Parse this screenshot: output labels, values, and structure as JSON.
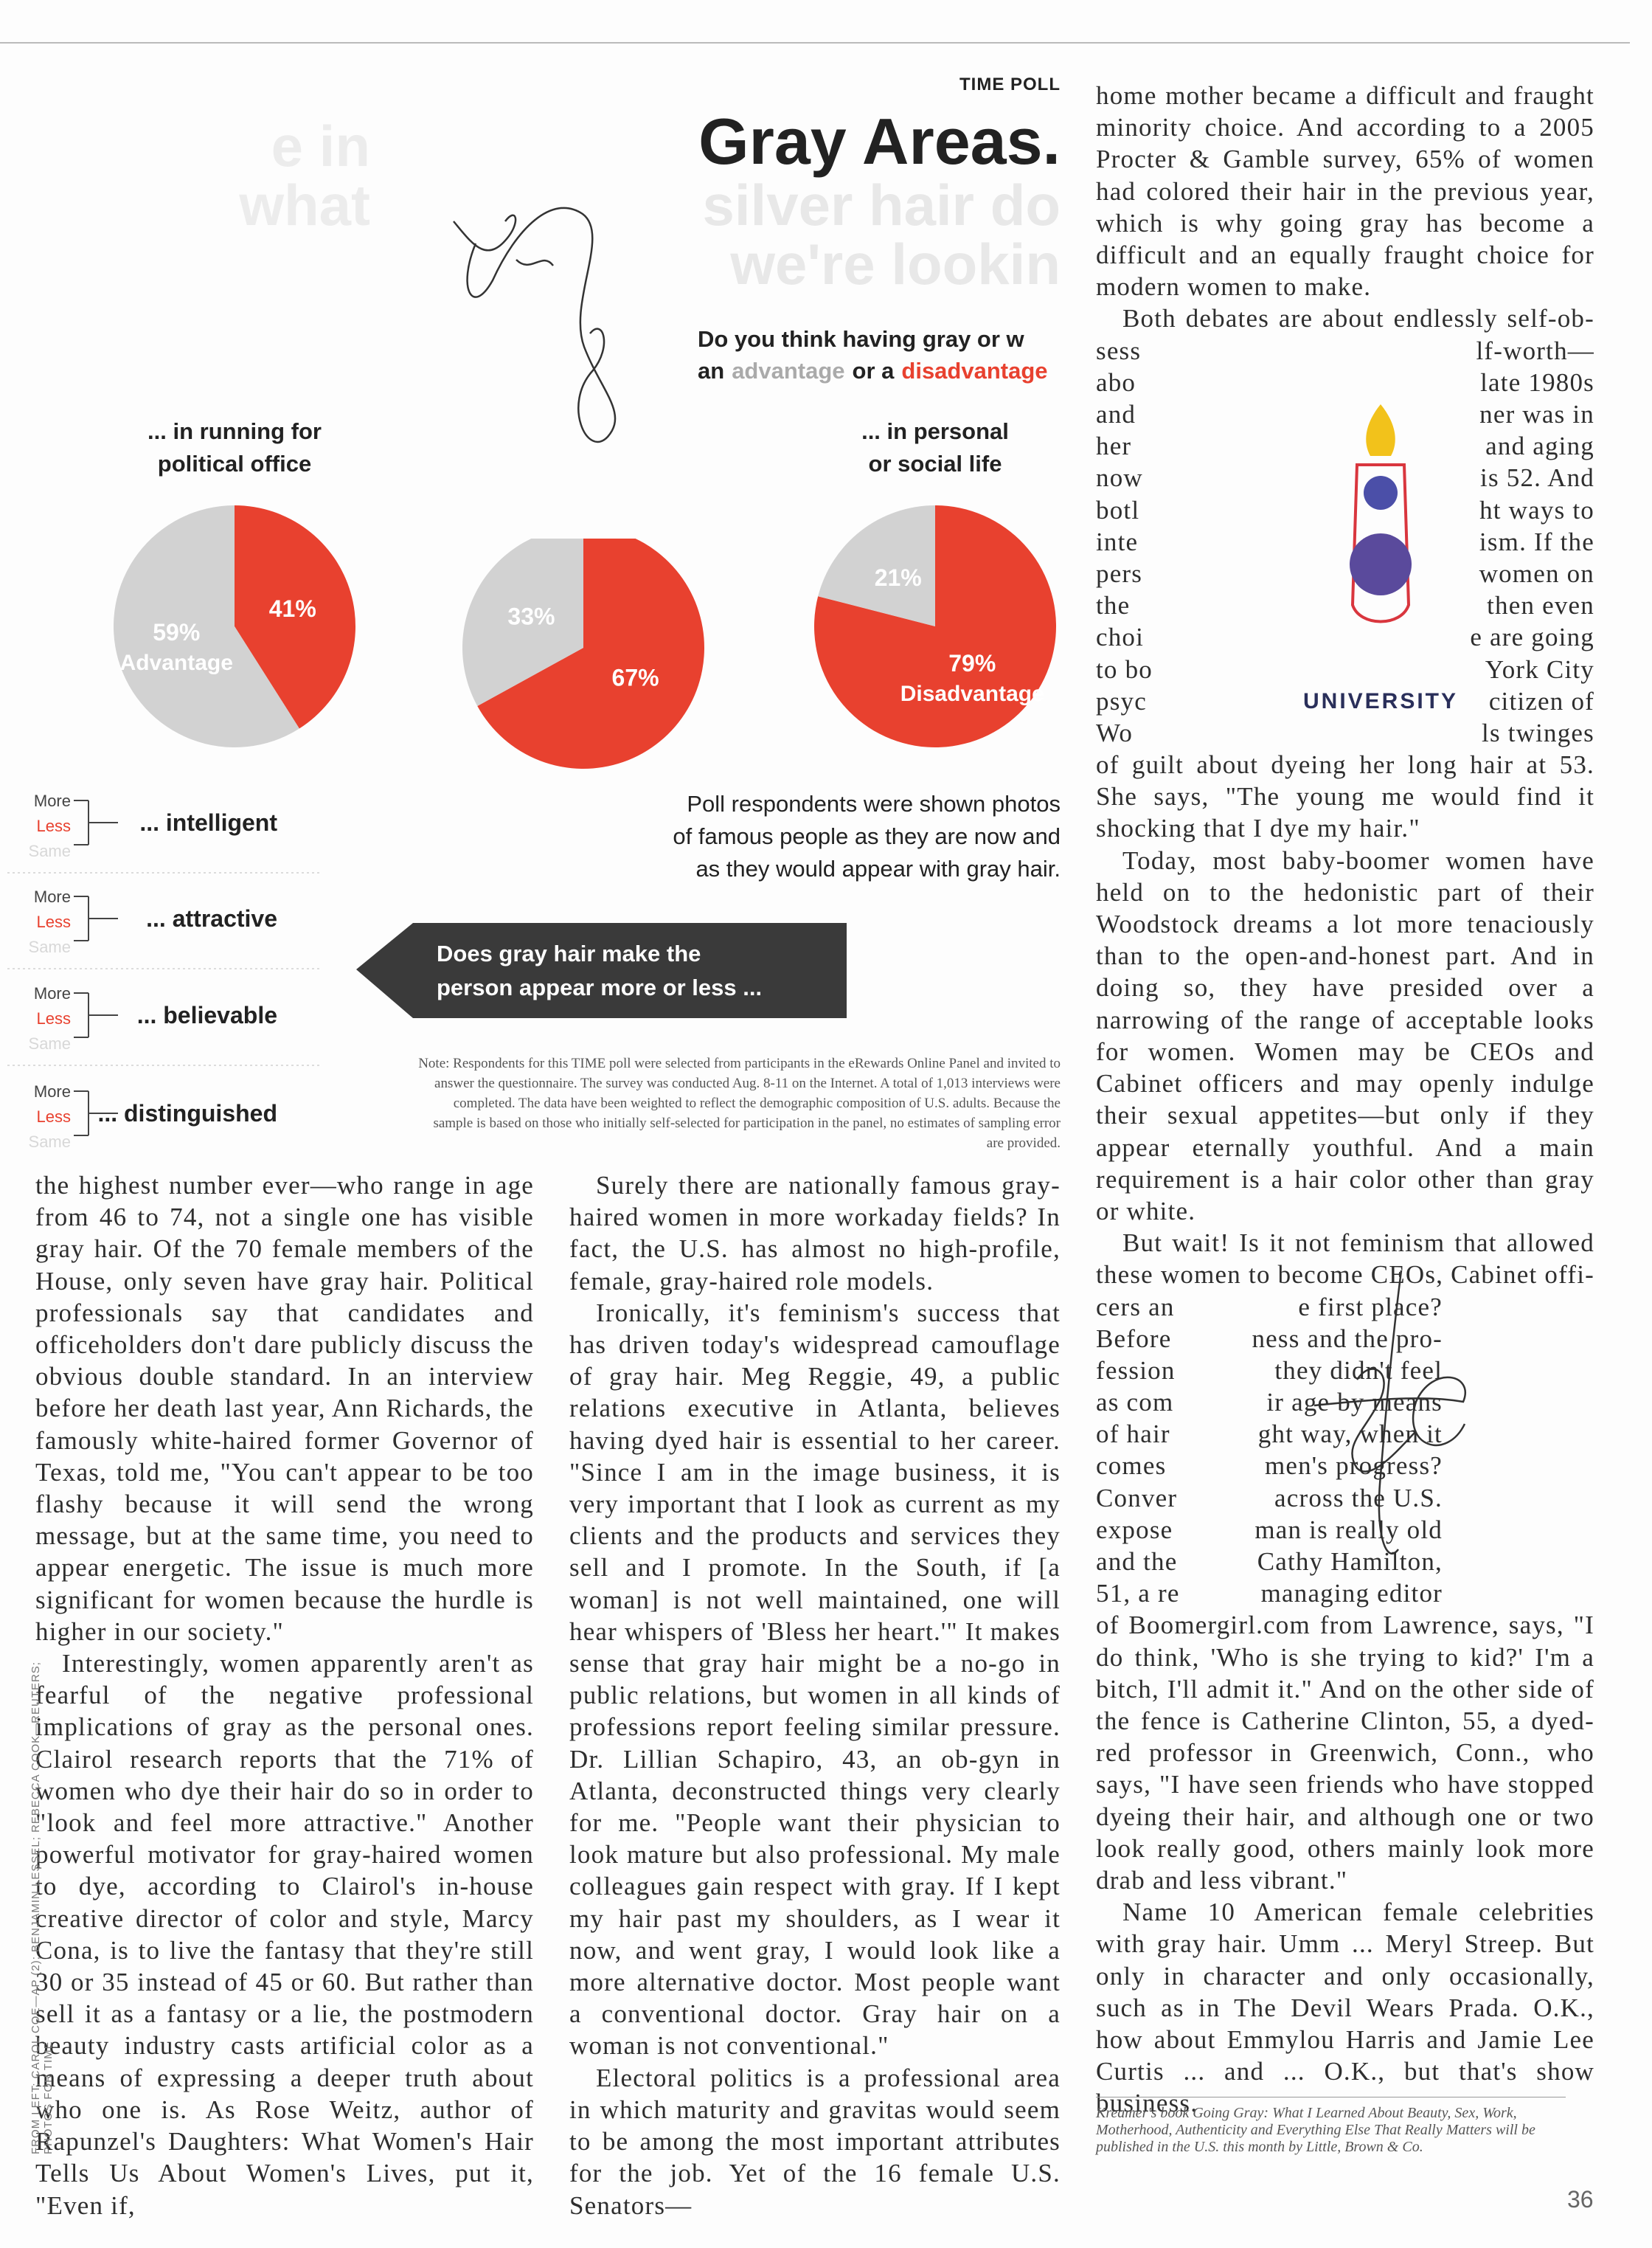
{
  "header": {
    "section": "TIME POLL",
    "title": "Gray Areas.",
    "faded_lines": [
      "silver hair do",
      "we're lookin"
    ],
    "faded_side": [
      "e in",
      "what"
    ]
  },
  "question": {
    "line1": "Do you think having gray or w",
    "line2": [
      "an",
      "advantage",
      "or a",
      "disadvantage"
    ]
  },
  "pies": [
    {
      "label": [
        "... in personal",
        "or social life"
      ],
      "slices": [
        {
          "value": 79,
          "label": "79%",
          "name": "Disadvantage"
        },
        {
          "value": 21,
          "label": "21%"
        }
      ]
    },
    {
      "slices": [
        {
          "value": 67,
          "label": "67%"
        },
        {
          "value": 33,
          "label": "33%"
        }
      ]
    },
    {
      "label": [
        "... in running for",
        "political office"
      ],
      "slices": [
        {
          "value": 41,
          "label": "41%"
        },
        {
          "value": 59,
          "label": "59%",
          "name": "Advantage"
        }
      ]
    }
  ],
  "poll_intro": [
    "Poll respondents were shown photos",
    "of famous people as they are now and",
    "as they would appear with gray hair."
  ],
  "banner": [
    "Does gray hair make the",
    "person appear more or less ..."
  ],
  "traits": [
    {
      "label": "... intelligent",
      "options": [
        "More",
        "Less",
        "Same"
      ]
    },
    {
      "label": "... attractive",
      "options": [
        "More",
        "Less",
        "Same"
      ]
    },
    {
      "label": "... believable",
      "options": [
        "More",
        "Less",
        "Same"
      ]
    },
    {
      "label": "... distinguished",
      "options": [
        "More",
        "Less",
        "Same"
      ]
    }
  ],
  "note": "Note: Respondents for this TIME poll were selected from participants in the eRewards Online Panel and invited to answer the questionnaire. The survey was conducted Aug. 8-11 on the Internet. A total of 1,013 interviews were completed. The data have been weighted to reflect the demographic composition of U.S. adults. Because the sample is based on those who initially self-selected for participation in the panel, no estimates of sampling error are provided.",
  "logo": "UNIVERSITY",
  "columns": [
    [
      "home mother became a difficult and fraught minority choice. And according to a 2005 Procter & Gamble survey, 65% of women had colored their hair in the previous year, which is why going gray has become a difficult and an equally fraught choice for modern women to make.",
      "Both debates are about endlessly self-ob-",
      [
        [
          "sess",
          "lf-worth—"
        ],
        [
          "abo",
          "late 1980s"
        ],
        [
          "and",
          "ner was in"
        ],
        [
          "her",
          "and aging"
        ],
        [
          "now",
          "is 52. And"
        ],
        [
          "botl",
          "ht ways to"
        ],
        [
          "inte",
          "ism. If the"
        ],
        [
          "pers",
          "women on"
        ],
        [
          "the",
          "then even"
        ],
        [
          "choi",
          "e are going"
        ],
        [
          "to bo",
          "York City"
        ],
        [
          "psyc",
          "citizen of"
        ],
        [
          "Wo",
          "ls twinges"
        ]
      ],
      "of guilt about dyeing her long hair at 53. She says, \"The young me would find it shocking that I dye my hair.\"",
      "Today, most baby-boomer women have held on to the hedonistic part of their Woodstock dreams a lot more tenaciously than to the open-and-honest part. And in doing so, they have presided over a narrowing of the range of acceptable looks for women. Women may be CEOs and Cabinet officers and may openly indulge their sexual appetites—but only if they appear eternally youthful. And a main requirement is a hair color other than gray or white.",
      "But wait! Is it not feminism that allowed these women to become CEOs, Cabinet offi-",
      [
        [
          "cers an",
          "e first place?"
        ],
        [
          "Before",
          "ness and the pro-"
        ],
        [
          "fession",
          "they didn't feel"
        ],
        [
          "as com",
          "ir age by means"
        ],
        [
          "of hair",
          "ght way, when it"
        ],
        [
          "comes",
          "men's progress?"
        ],
        [
          "Conver",
          "across the U.S."
        ],
        [
          "expose",
          "man is really old"
        ],
        [
          "and the",
          "Cathy Hamilton,"
        ],
        [
          "51, a re",
          "managing editor"
        ]
      ],
      "of Boomergirl.com from Lawrence, says, \"I do think, 'Who is she trying to kid?' I'm a bitch, I'll admit it.\" And on the other side of the fence is Catherine Clinton, 55, a dyed-red professor in Greenwich, Conn., who says, \"I have seen friends who have stopped dyeing their hair, and although one or two look really good, others mainly look more drab and less vibrant.\"",
      "Name 10 American female celebrities with gray hair. Umm ... Meryl Streep. But only in character and only occasionally, such as in The Devil Wears Prada. O.K., how about Emmylou Harris and Jamie Lee Curtis ... and ... O.K., but that's show business."
    ],
    [
      "Surely there are nationally famous gray-haired women in more workaday fields? In fact, the U.S. has almost no high-profile, female, gray-haired role models.",
      "Ironically, it's feminism's success that has driven today's widespread camouflage of gray hair. Meg Reggie, 49, a public relations executive in Atlanta, believes having dyed hair is essential to her career. \"Since I am in the image business, it is very important that I look as current as my clients and the products and services they sell and I promote. In the South, if [a woman] is not well maintained, one will hear whispers of 'Bless her heart.'\" It makes sense that gray hair might be a no-go in public relations, but women in all kinds of professions report feeling similar pressure. Dr. Lillian Schapiro, 43, an ob-gyn in Atlanta, deconstructed things very clearly for me. \"People want their physician to look mature but also professional. My male colleagues gain respect with gray. If I kept my hair past my shoulders, as I wear it now, and went gray, I would look like a more alternative doctor. Most people want a conventional doctor. Gray hair on a woman is not conventional.\"",
      "Electoral politics is a professional area in which maturity and gravitas would seem to be among the most important attributes for the job. Yet of the 16 female U.S. Senators—"
    ],
    [
      "the highest number ever—who range in age from 46 to 74, not a single one has visible gray hair. Of the 70 female members of the House, only seven have gray hair. Political professionals say that candidates and officeholders don't dare publicly discuss the obvious double standard. In an interview before her death last year, Ann Richards, the famously white-haired former Governor of Texas, told me, \"You can't appear to be too flashy because it will send the wrong message, but at the same time, you need to appear energetic. The issue is much more significant for women because the hurdle is higher in our society.\"",
      "Interestingly, women apparently aren't as fearful of the negative professional implications of gray as the personal ones. Clairol research reports that the 71% of women who dye their hair do so in order to \"look and feel more attractive.\" Another powerful motivator for gray-haired women to dye, according to Clairol's in-house creative director of color and style, Marcy Cona, is to live the fantasy that they're still 30 or 35 instead of 45 or 60. But rather than sell it as a fantasy or a lie, the postmodern beauty industry casts artificial color as a means of expressing a deeper truth about who one is. As Rose Weitz, author of Rapunzel's Daughters: What Women's Hair Tells Us About Women's Lives, put it, \"Even if,"
    ]
  ],
  "footnote": "Kreamer's book Going Gray: What I Learned About Beauty, Sex, Work, Motherhood, Authenticity and Everything Else That Really Matters will be published in the U.S. this month by Little, Brown & Co.",
  "page_number": "36",
  "credit": "FROM LEFT: CAROL COE—AP (2); BENJAMIN LESSEL; REBECCA COOK—REUTERS; PHOTOS FOR TIME"
}
